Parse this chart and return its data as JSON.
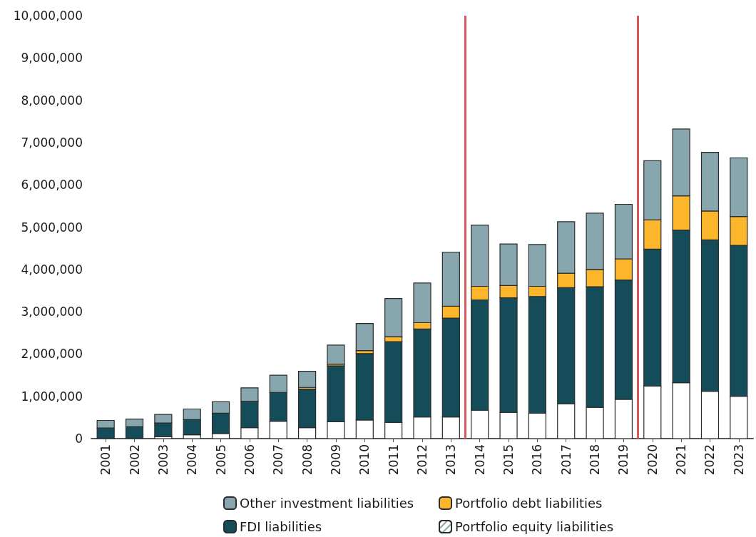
{
  "chart_data": {
    "type": "bar",
    "stacked": true,
    "x": [
      2001,
      2002,
      2003,
      2004,
      2005,
      2006,
      2007,
      2008,
      2009,
      2010,
      2011,
      2012,
      2013,
      2014,
      2015,
      2016,
      2017,
      2018,
      2019,
      2020,
      2021,
      2022,
      2023
    ],
    "xlim": [
      2000.5,
      2023.5
    ],
    "xticks": [
      2001,
      2002,
      2003,
      2004,
      2005,
      2006,
      2007,
      2008,
      2009,
      2010,
      2011,
      2012,
      2013,
      2014,
      2015,
      2016,
      2017,
      2018,
      2019,
      2020,
      2021,
      2022,
      2023
    ],
    "ylim": [
      0,
      10000000
    ],
    "yticks": [
      0,
      {
        "value": 1000000,
        "label": "1,000,000"
      },
      {
        "value": 2000000,
        "label": "2,000,000"
      },
      {
        "value": 3000000,
        "label": "3,000,000"
      },
      {
        "value": 4000000,
        "label": "4,000,000"
      },
      {
        "value": 5000000,
        "label": "5,000,000"
      },
      {
        "value": 6000000,
        "label": "6,000,000"
      },
      {
        "value": 7000000,
        "label": "7,000,000"
      },
      {
        "value": 8000000,
        "label": "8,000,000"
      },
      {
        "value": 9000000,
        "label": "9,000,000"
      },
      {
        "value": 10000000,
        "label": "10,000,000"
      }
    ],
    "series": [
      {
        "name": "Portfolio equity liabilities",
        "color": "#ffffff",
        "values": [
          0,
          0,
          50000,
          90000,
          120000,
          260000,
          410000,
          260000,
          400000,
          440000,
          380000,
          510000,
          510000,
          670000,
          620000,
          600000,
          820000,
          740000,
          930000,
          1240000,
          1320000,
          1120000,
          1000000
        ]
      },
      {
        "name": "FDI liabilities",
        "color": "#154c5a",
        "values": [
          250000,
          280000,
          320000,
          360000,
          480000,
          620000,
          680000,
          910000,
          1320000,
          1570000,
          1910000,
          2080000,
          2340000,
          2610000,
          2710000,
          2760000,
          2750000,
          2850000,
          2820000,
          3240000,
          3610000,
          3580000,
          3570000
        ]
      },
      {
        "name": "Portfolio debt liabilities",
        "color": "#fbb62b",
        "values": [
          0,
          0,
          0,
          0,
          0,
          0,
          0,
          40000,
          40000,
          70000,
          120000,
          150000,
          280000,
          320000,
          290000,
          240000,
          340000,
          410000,
          500000,
          690000,
          810000,
          680000,
          680000
        ]
      },
      {
        "name": "Other investment liabilities",
        "color": "#87a6ad",
        "values": [
          180000,
          180000,
          200000,
          250000,
          270000,
          320000,
          410000,
          380000,
          450000,
          640000,
          900000,
          940000,
          1280000,
          1450000,
          980000,
          990000,
          1220000,
          1330000,
          1290000,
          1400000,
          1580000,
          1390000,
          1390000
        ]
      }
    ],
    "ref_lines": [
      {
        "axis": "x",
        "value": 2013.5,
        "color": "#d9575a"
      },
      {
        "axis": "x",
        "value": 2019.5,
        "color": "#d9575a"
      }
    ],
    "legend": "bottom",
    "grid": false
  }
}
